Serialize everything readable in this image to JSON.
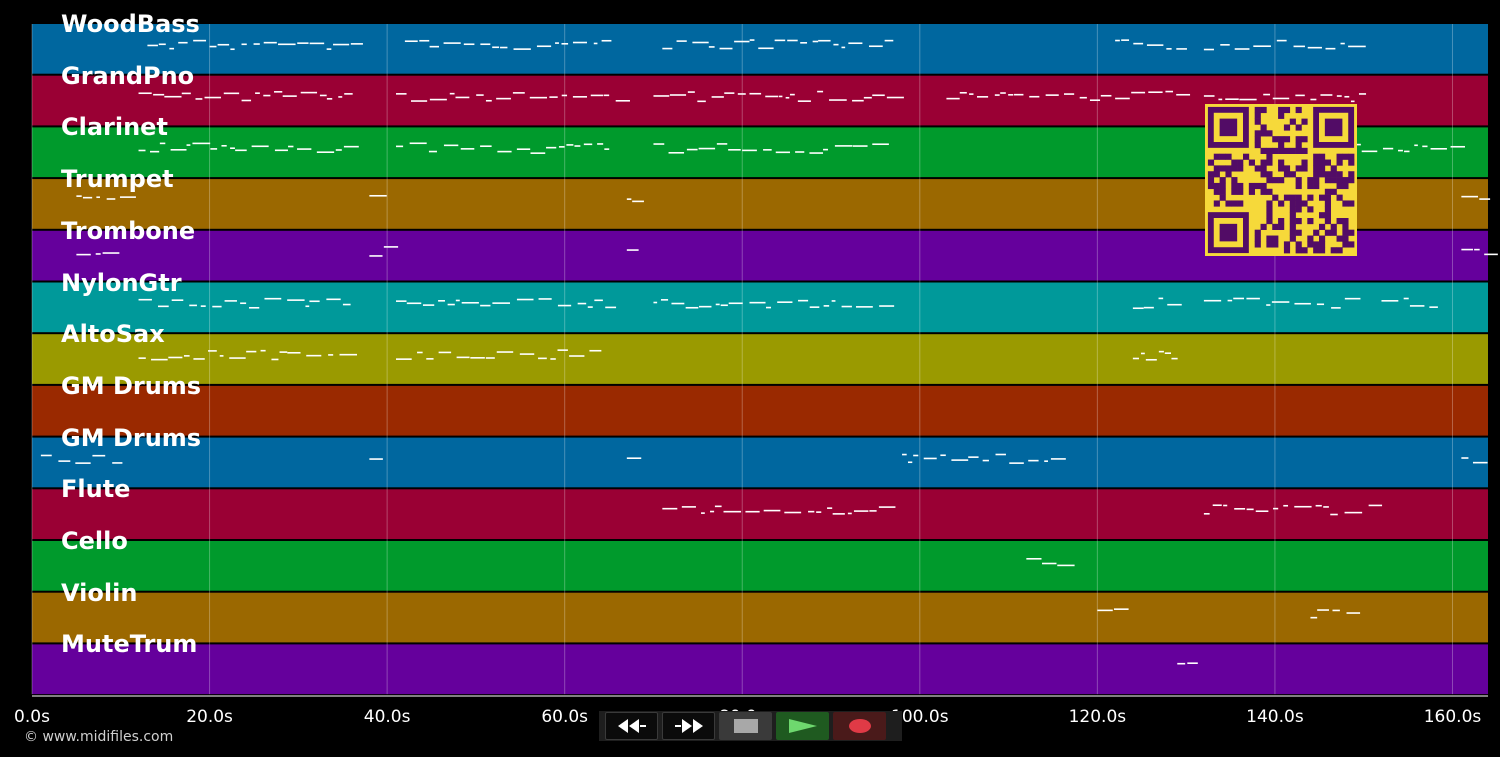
{
  "tracks": [
    {
      "name": "WoodBass",
      "color": "#00679f"
    },
    {
      "name": "GrandPno",
      "color": "#9a0034"
    },
    {
      "name": "Clarinet",
      "color": "#009a2c"
    },
    {
      "name": "Trumpet",
      "color": "#9b6800"
    },
    {
      "name": "Trombone",
      "color": "#65009c"
    },
    {
      "name": "NylonGtr",
      "color": "#00999a"
    },
    {
      "name": "AltoSax",
      "color": "#9a9a00"
    },
    {
      "name": "GM Drums",
      "color": "#9a2900"
    },
    {
      "name": "GM Drums",
      "color": "#00679f"
    },
    {
      "name": "Flute",
      "color": "#9a0034"
    },
    {
      "name": "Cello",
      "color": "#009a2c"
    },
    {
      "name": "Violin",
      "color": "#9b6800"
    },
    {
      "name": "MuteTrum",
      "color": "#65009c"
    }
  ],
  "time_axis": {
    "ticks": [
      "0.0s",
      "20.0s",
      "40.0s",
      "60.0s",
      "80.0s",
      "100.0s",
      "120.0s",
      "140.0s",
      "160.0s"
    ],
    "range_seconds": [
      0,
      164
    ]
  },
  "copyright": "© www.midifiles.com",
  "transport": {
    "buttons": [
      {
        "name": "rewind",
        "icon": "rewind-icon"
      },
      {
        "name": "fast-forward",
        "icon": "fast-forward-icon"
      },
      {
        "name": "stop",
        "icon": "stop-icon"
      },
      {
        "name": "play",
        "icon": "play-icon"
      },
      {
        "name": "record",
        "icon": "record-icon"
      }
    ]
  },
  "qr_code": {
    "icon": "qr-code-icon",
    "color": "#f6d93a",
    "module_color": "#520c66"
  }
}
